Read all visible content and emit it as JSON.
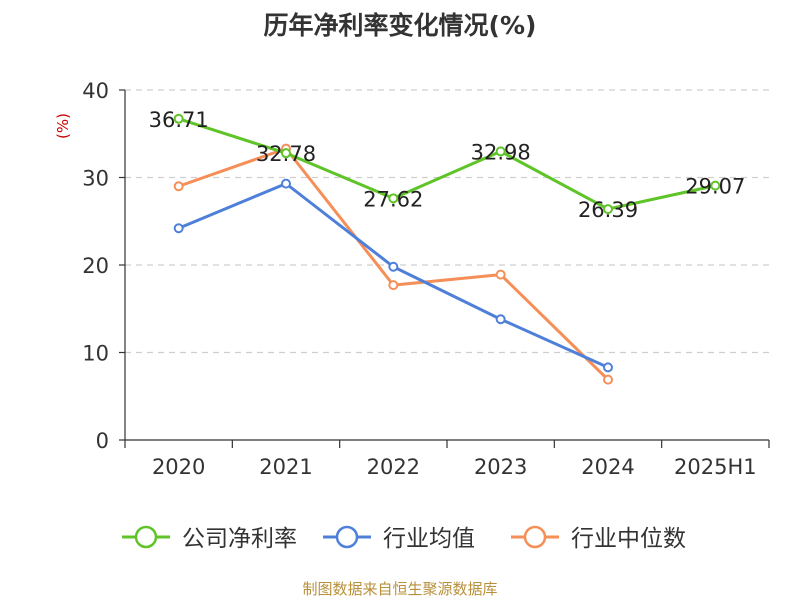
{
  "title": "历年净利率变化情况(%)",
  "source": "制图数据来自恒生聚源数据库",
  "chart_data": {
    "type": "line",
    "title": "历年净利率变化情况(%)",
    "ylabel": "(%)",
    "xlabel": "",
    "categories": [
      "2020",
      "2021",
      "2022",
      "2023",
      "2024",
      "2025H1"
    ],
    "ylim": [
      0,
      40
    ],
    "yticks": [
      0,
      10,
      20,
      30,
      40
    ],
    "grid": "horizontal-dashed",
    "legend_position": "bottom",
    "series": [
      {
        "name": "公司净利率",
        "color": "#5fc427",
        "values": [
          36.71,
          32.78,
          27.62,
          32.98,
          26.39,
          29.07
        ],
        "labels": [
          "36.71",
          "32.78",
          "27.62",
          "32.98",
          "26.39",
          "29.07"
        ]
      },
      {
        "name": "行业均值",
        "color": "#4f80d9",
        "values": [
          24.2,
          29.3,
          19.8,
          13.8,
          8.3,
          null
        ]
      },
      {
        "name": "行业中位数",
        "color": "#f68e57",
        "values": [
          29.0,
          33.3,
          17.7,
          18.9,
          6.9,
          null
        ]
      }
    ]
  }
}
